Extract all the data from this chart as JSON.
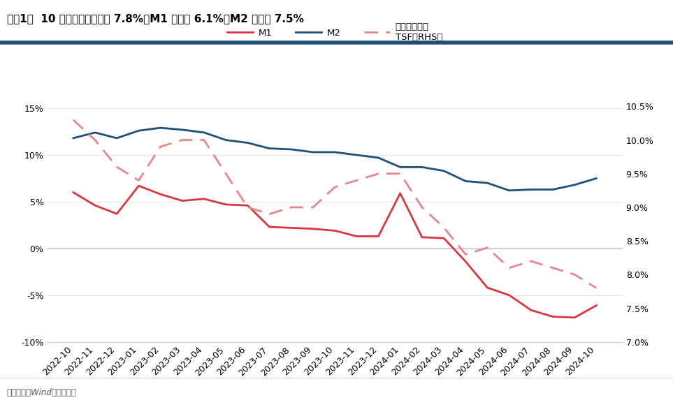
{
  "title": "图表1：  10 月社融存量同比增 7.8%、M1 同比减 6.1%、M2 同比增 7.5%",
  "footnote": "资料来源：Wind，中信建投",
  "labels": [
    "2022-10",
    "2022-11",
    "2022-12",
    "2023-01",
    "2023-02",
    "2023-03",
    "2023-04",
    "2023-05",
    "2023-06",
    "2023-07",
    "2023-08",
    "2023-09",
    "2023-10",
    "2023-11",
    "2023-12",
    "2024-01",
    "2024-02",
    "2024-03",
    "2024-04",
    "2024-05",
    "2024-06",
    "2024-07",
    "2024-08",
    "2024-09",
    "2024-10"
  ],
  "M1": [
    6.0,
    4.6,
    3.7,
    6.7,
    5.8,
    5.1,
    5.3,
    4.7,
    4.6,
    2.3,
    2.2,
    2.1,
    1.9,
    1.3,
    1.3,
    5.9,
    1.2,
    1.1,
    -1.4,
    -4.2,
    -5.0,
    -6.6,
    -7.3,
    -7.4,
    -6.1
  ],
  "M2": [
    11.8,
    12.4,
    11.8,
    12.6,
    12.9,
    12.7,
    12.4,
    11.6,
    11.3,
    10.7,
    10.6,
    10.3,
    10.3,
    10.0,
    9.7,
    8.7,
    8.7,
    8.3,
    7.2,
    7.0,
    6.2,
    6.3,
    6.3,
    6.8,
    7.5
  ],
  "TSF": [
    10.3,
    10.0,
    9.6,
    9.4,
    9.9,
    10.0,
    10.0,
    9.5,
    9.0,
    8.9,
    9.0,
    9.0,
    9.3,
    9.4,
    9.5,
    9.5,
    9.0,
    8.7,
    8.3,
    8.4,
    8.1,
    8.2,
    8.1,
    8.0,
    7.8
  ],
  "m1_color": "#d9363e",
  "m2_color": "#1f4e79",
  "tsf_color": "#e8868a",
  "left_ylim": [
    -10,
    17
  ],
  "right_ylim": [
    7.0,
    10.75
  ],
  "left_yticks": [
    -10,
    -5,
    0,
    5,
    10,
    15
  ],
  "right_yticks": [
    7.0,
    7.5,
    8.0,
    8.5,
    9.0,
    9.5,
    10.0,
    10.5
  ],
  "bg_color": "#ffffff",
  "title_color": "#000000",
  "title_fontsize": 11,
  "bar_color": "#1f4e79",
  "footnote_color": "#555555"
}
